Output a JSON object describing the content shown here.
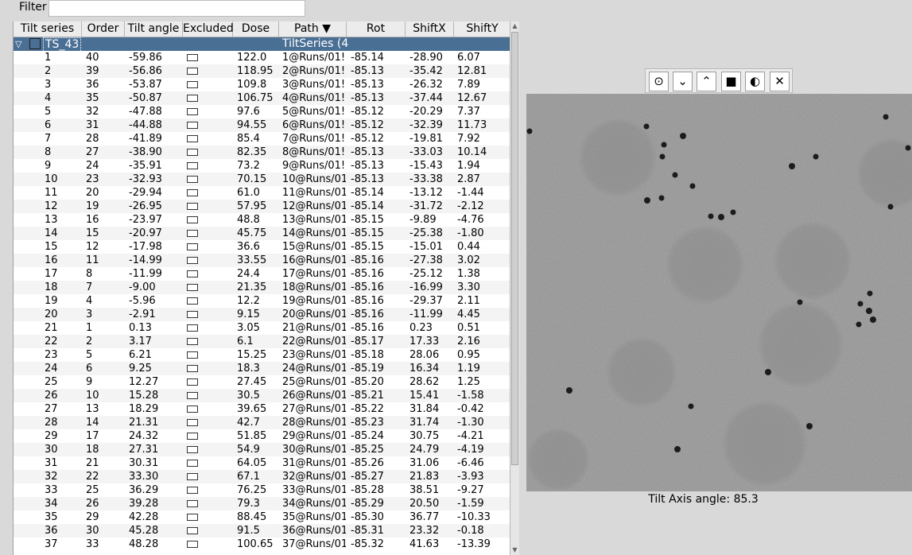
{
  "filter": {
    "label": "Filter",
    "value": ""
  },
  "columns": [
    "Tilt series",
    "Order",
    "Tilt angle",
    "Excluded",
    "Dose",
    "Path ▼",
    "Rot",
    "ShiftX",
    "ShiftY"
  ],
  "group": {
    "name": "TS_43",
    "path": "TiltSeries (4"
  },
  "rows": [
    [
      "1",
      "40",
      "-59.86",
      "122.0",
      "1@Runs/01!",
      "-85.14",
      "-28.90",
      "6.07"
    ],
    [
      "2",
      "39",
      "-56.86",
      "118.95",
      "2@Runs/01!",
      "-85.13",
      "-35.42",
      "12.81"
    ],
    [
      "3",
      "36",
      "-53.87",
      "109.8",
      "3@Runs/01!",
      "-85.13",
      "-26.32",
      "7.89"
    ],
    [
      "4",
      "35",
      "-50.87",
      "106.75",
      "4@Runs/01!",
      "-85.13",
      "-37.44",
      "12.67"
    ],
    [
      "5",
      "32",
      "-47.88",
      "97.6",
      "5@Runs/01!",
      "-85.12",
      "-20.29",
      "7.37"
    ],
    [
      "6",
      "31",
      "-44.88",
      "94.55",
      "6@Runs/01!",
      "-85.12",
      "-32.39",
      "11.73"
    ],
    [
      "7",
      "28",
      "-41.89",
      "85.4",
      "7@Runs/01!",
      "-85.12",
      "-19.81",
      "7.92"
    ],
    [
      "8",
      "27",
      "-38.90",
      "82.35",
      "8@Runs/01!",
      "-85.13",
      "-33.03",
      "10.14"
    ],
    [
      "9",
      "24",
      "-35.91",
      "73.2",
      "9@Runs/01!",
      "-85.13",
      "-15.43",
      "1.94"
    ],
    [
      "10",
      "23",
      "-32.93",
      "70.15",
      "10@Runs/01",
      "-85.13",
      "-33.38",
      "2.87"
    ],
    [
      "11",
      "20",
      "-29.94",
      "61.0",
      "11@Runs/01",
      "-85.14",
      "-13.12",
      "-1.44"
    ],
    [
      "12",
      "19",
      "-26.95",
      "57.95",
      "12@Runs/01",
      "-85.14",
      "-31.72",
      "-2.12"
    ],
    [
      "13",
      "16",
      "-23.97",
      "48.8",
      "13@Runs/01",
      "-85.15",
      "-9.89",
      "-4.76"
    ],
    [
      "14",
      "15",
      "-20.97",
      "45.75",
      "14@Runs/01",
      "-85.15",
      "-25.38",
      "-1.80"
    ],
    [
      "15",
      "12",
      "-17.98",
      "36.6",
      "15@Runs/01",
      "-85.15",
      "-15.01",
      "0.44"
    ],
    [
      "16",
      "11",
      "-14.99",
      "33.55",
      "16@Runs/01",
      "-85.16",
      "-27.38",
      "3.02"
    ],
    [
      "17",
      "8",
      "-11.99",
      "24.4",
      "17@Runs/01",
      "-85.16",
      "-25.12",
      "1.38"
    ],
    [
      "18",
      "7",
      "-9.00",
      "21.35",
      "18@Runs/01",
      "-85.16",
      "-16.99",
      "3.30"
    ],
    [
      "19",
      "4",
      "-5.96",
      "12.2",
      "19@Runs/01",
      "-85.16",
      "-29.37",
      "2.11"
    ],
    [
      "20",
      "3",
      "-2.91",
      "9.15",
      "20@Runs/01",
      "-85.16",
      "-11.99",
      "4.45"
    ],
    [
      "21",
      "1",
      "0.13",
      "3.05",
      "21@Runs/01",
      "-85.16",
      "0.23",
      "0.51"
    ],
    [
      "22",
      "2",
      "3.17",
      "6.1",
      "22@Runs/01",
      "-85.17",
      "17.33",
      "2.16"
    ],
    [
      "23",
      "5",
      "6.21",
      "15.25",
      "23@Runs/01",
      "-85.18",
      "28.06",
      "0.95"
    ],
    [
      "24",
      "6",
      "9.25",
      "18.3",
      "24@Runs/01",
      "-85.19",
      "16.34",
      "1.19"
    ],
    [
      "25",
      "9",
      "12.27",
      "27.45",
      "25@Runs/01",
      "-85.20",
      "28.62",
      "1.25"
    ],
    [
      "26",
      "10",
      "15.28",
      "30.5",
      "26@Runs/01",
      "-85.21",
      "15.41",
      "-1.58"
    ],
    [
      "27",
      "13",
      "18.29",
      "39.65",
      "27@Runs/01",
      "-85.22",
      "31.84",
      "-0.42"
    ],
    [
      "28",
      "14",
      "21.31",
      "42.7",
      "28@Runs/01",
      "-85.23",
      "31.74",
      "-1.30"
    ],
    [
      "29",
      "17",
      "24.32",
      "51.85",
      "29@Runs/01",
      "-85.24",
      "30.75",
      "-4.21"
    ],
    [
      "30",
      "18",
      "27.31",
      "54.9",
      "30@Runs/01",
      "-85.25",
      "24.79",
      "-4.19"
    ],
    [
      "31",
      "21",
      "30.31",
      "64.05",
      "31@Runs/01",
      "-85.26",
      "31.06",
      "-6.46"
    ],
    [
      "32",
      "22",
      "33.30",
      "67.1",
      "32@Runs/01",
      "-85.27",
      "21.83",
      "-3.93"
    ],
    [
      "33",
      "25",
      "36.29",
      "76.25",
      "33@Runs/01",
      "-85.28",
      "38.51",
      "-9.27"
    ],
    [
      "34",
      "26",
      "39.28",
      "79.3",
      "34@Runs/01",
      "-85.29",
      "20.50",
      "-1.59"
    ],
    [
      "35",
      "29",
      "42.28",
      "88.45",
      "35@Runs/01",
      "-85.30",
      "36.77",
      "-10.33"
    ],
    [
      "36",
      "30",
      "45.28",
      "91.5",
      "36@Runs/01",
      "-85.31",
      "23.32",
      "-0.18"
    ],
    [
      "37",
      "33",
      "48.28",
      "100.65",
      "37@Runs/01",
      "-85.32",
      "41.63",
      "-13.39"
    ]
  ],
  "toolbar": {
    "icons": [
      "play-circle-icon",
      "chevron-down-icon",
      "chevron-up-icon",
      "square-stop-icon",
      "contrast-icon",
      "close-icon"
    ],
    "glyphs": [
      "⊙",
      "⌄",
      "⌃",
      "■",
      "◐",
      "✕"
    ]
  },
  "image": {
    "caption": "Tilt Axis angle: 85.3"
  },
  "colors": {
    "group_row": "#4a6f94",
    "image_bg": "#8c8c8c"
  }
}
